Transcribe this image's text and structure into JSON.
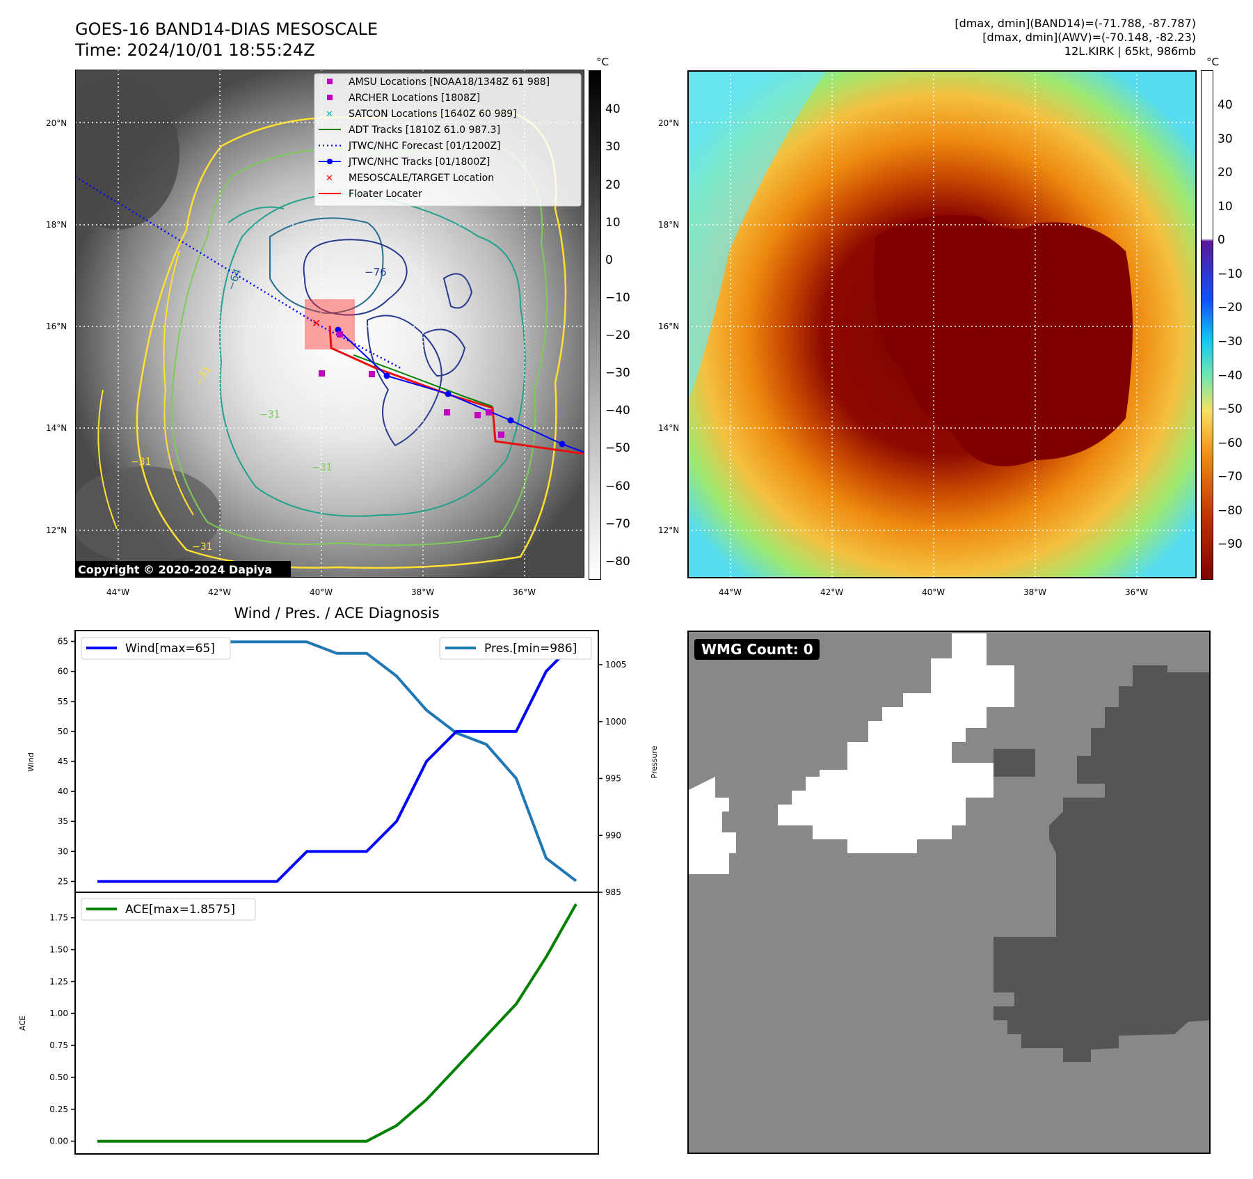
{
  "header": {
    "title_line1": "GOES-16 BAND14-DIAS MESOSCALE",
    "title_line2": "Time: 2024/10/01 18:55:24Z",
    "info_line1": "[dmax, dmin](BAND14)=(-71.788, -87.787)",
    "info_line2": "[dmax, dmin](AWV)=(-70.148, -82.23)",
    "info_line3": "12L.KIRK | 65kt, 986mb"
  },
  "map_axes": {
    "lat_ticks": [
      "20°N",
      "18°N",
      "16°N",
      "14°N",
      "12°N"
    ],
    "lon_ticks": [
      "44°W",
      "42°W",
      "40°W",
      "38°W",
      "36°W"
    ],
    "copyright": "Copyright © 2020-2024 Dapiya"
  },
  "ir_panel": {
    "unit": "°C",
    "colorbar_ticks": [
      "40",
      "30",
      "20",
      "10",
      "0",
      "−10",
      "−20",
      "−30",
      "−40",
      "−50",
      "−60",
      "−70",
      "−80"
    ],
    "contour_labels": [
      "−76",
      "−64",
      "−31",
      "−31",
      "−31",
      "−31",
      "−31"
    ],
    "legend": [
      {
        "label": "AMSU Locations [NOAA18/1348Z 61 988]",
        "color": "#c000c0"
      },
      {
        "label": "ARCHER Locations [1808Z]",
        "color": "#c000c0"
      },
      {
        "label": "SATCON Locations [1640Z 60 989]",
        "color": "#00b8b8"
      },
      {
        "label": "ADT Tracks [1810Z 61.0 987.3]",
        "color": "#008000"
      },
      {
        "label": "JTWC/NHC Forecast [01/1200Z]",
        "color": "#0000ff"
      },
      {
        "label": "JTWC/NHC Tracks [01/1800Z]",
        "color": "#0000ff"
      },
      {
        "label": "MESOSCALE/TARGET Location",
        "color": "#ff0000"
      },
      {
        "label": "Floater Locater",
        "color": "#ff0000"
      }
    ]
  },
  "awv_panel": {
    "unit": "°C",
    "colorbar_ticks": [
      "40",
      "30",
      "20",
      "10",
      "0",
      "−10",
      "−20",
      "−30",
      "−40",
      "−50",
      "−60",
      "−70",
      "−80",
      "−90"
    ]
  },
  "wmg_panel": {
    "label": "WMG Count: 0"
  },
  "chart_data": [
    {
      "type": "line",
      "title": "Wind / Pres. / ACE Diagnosis",
      "x": [
        0,
        1,
        2,
        3,
        4,
        5,
        6,
        7,
        8,
        9,
        10,
        11,
        12,
        13,
        14,
        15,
        16
      ],
      "series": [
        {
          "name": "Wind[max=65]",
          "axis": "left",
          "color": "#0000ff",
          "values": [
            25,
            25,
            25,
            25,
            25,
            25,
            25,
            30,
            30,
            30,
            35,
            45,
            50,
            50,
            50,
            60,
            65
          ]
        },
        {
          "name": "Pres.[min=986]",
          "axis": "right",
          "color": "#1f77b4",
          "values": [
            1007,
            1007,
            1007,
            1007,
            1007,
            1007,
            1007,
            1007,
            1006,
            1006,
            1004,
            1001,
            999,
            998,
            995,
            988,
            986
          ]
        }
      ],
      "ylabel": "Wind",
      "ylabel_right": "Pressure",
      "ylim": [
        23.2,
        66.8
      ],
      "ylim_right": [
        985,
        1008
      ],
      "yticks": [
        "25",
        "30",
        "35",
        "40",
        "45",
        "50",
        "55",
        "60",
        "65"
      ],
      "yticks_right": [
        "985",
        "990",
        "995",
        "1000",
        "1005"
      ]
    },
    {
      "type": "line",
      "x": [
        0,
        1,
        2,
        3,
        4,
        5,
        6,
        7,
        8,
        9,
        10,
        11,
        12,
        13,
        14,
        15,
        16
      ],
      "series": [
        {
          "name": "ACE[max=1.8575]",
          "color": "#008000",
          "values": [
            0,
            0,
            0,
            0,
            0,
            0,
            0,
            0,
            0,
            0,
            0.1225,
            0.325,
            0.575,
            0.825,
            1.075,
            1.4425,
            1.8575
          ]
        }
      ],
      "ylabel": "ACE",
      "ylim": [
        -0.1,
        1.95
      ],
      "yticks": [
        "0.00",
        "0.25",
        "0.50",
        "0.75",
        "1.00",
        "1.25",
        "1.50",
        "1.75"
      ]
    }
  ]
}
